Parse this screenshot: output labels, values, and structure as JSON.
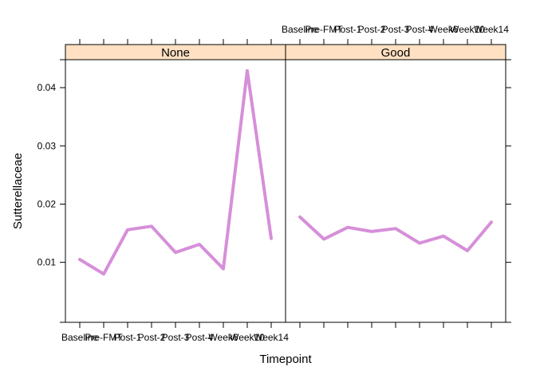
{
  "chart_data": {
    "type": "line",
    "xlabel": "Timepoint",
    "ylabel": "Sutterellaceae",
    "categories": [
      "Baseline",
      "Pre-FMT",
      "Post-1",
      "Post-2",
      "Post-3",
      "Post-4",
      "Week6",
      "Week10",
      "Week14"
    ],
    "y_ticks": [
      0.01,
      0.02,
      0.03,
      0.04
    ],
    "ylim": [
      -0.0003,
      0.0448
    ],
    "grid": false,
    "line_color": "#d68fd9",
    "strip_color": "#ffe0c2",
    "panels": [
      {
        "name": "None",
        "values": [
          0.0105,
          0.008,
          0.0156,
          0.0162,
          0.0117,
          0.0131,
          0.0089,
          0.0429,
          0.0141
        ]
      },
      {
        "name": "Good",
        "values": [
          0.0178,
          0.014,
          0.016,
          0.0153,
          0.0158,
          0.0133,
          0.0145,
          0.012,
          0.0169
        ]
      }
    ]
  }
}
